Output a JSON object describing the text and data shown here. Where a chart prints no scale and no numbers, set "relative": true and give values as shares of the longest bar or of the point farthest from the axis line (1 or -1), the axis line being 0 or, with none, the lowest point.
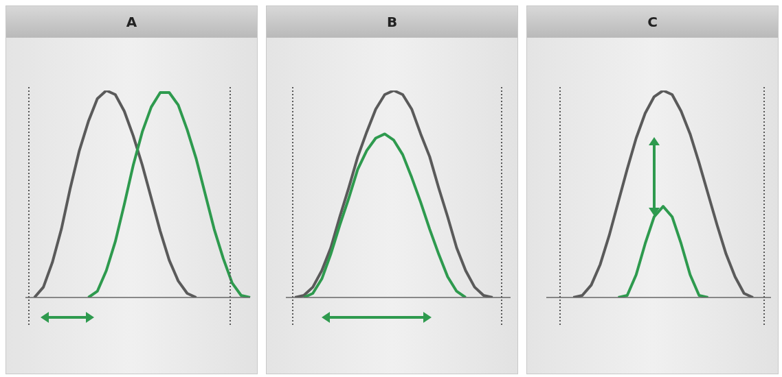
{
  "chart_data": [
    {
      "type": "line",
      "title": "A",
      "relative": true,
      "marker": "none",
      "line_style": "solid",
      "categories": [
        null,
        null,
        null,
        null,
        null,
        null,
        null,
        null,
        null,
        null,
        null,
        null,
        null,
        null,
        null,
        null,
        null,
        null,
        null,
        null,
        null,
        null,
        null,
        null,
        null,
        null
      ],
      "series": [
        {
          "color": "#5a5a5a",
          "values": [
            null,
            0,
            0.05,
            0.17,
            0.33,
            0.53,
            0.71,
            0.85,
            0.96,
            1,
            0.98,
            0.9,
            0.78,
            0.64,
            0.48,
            0.32,
            0.18,
            0.08,
            0.02,
            0,
            null,
            null,
            null,
            null,
            null,
            null
          ]
        },
        {
          "color": "#2e9a4e",
          "values": [
            null,
            null,
            null,
            null,
            null,
            null,
            null,
            0,
            0.03,
            0.13,
            0.27,
            0.45,
            0.64,
            0.8,
            0.92,
            0.99,
            0.99,
            0.93,
            0.81,
            0.67,
            0.5,
            0.33,
            0.19,
            0.07,
            0.01,
            0
          ]
        }
      ]
    },
    {
      "type": "line",
      "title": "B",
      "relative": true,
      "marker": "none",
      "line_style": "solid",
      "categories": [
        null,
        null,
        null,
        null,
        null,
        null,
        null,
        null,
        null,
        null,
        null,
        null,
        null,
        null,
        null,
        null,
        null,
        null,
        null,
        null,
        null,
        null,
        null,
        null,
        null,
        null
      ],
      "series": [
        {
          "color": "#5a5a5a",
          "values": [
            null,
            0,
            0.01,
            0.05,
            0.13,
            0.24,
            0.39,
            0.53,
            0.68,
            0.8,
            0.91,
            0.98,
            1,
            0.98,
            0.91,
            0.79,
            0.68,
            0.53,
            0.39,
            0.24,
            0.13,
            0.05,
            0.01,
            0,
            null,
            null
          ]
        },
        {
          "color": "#2e9a4e",
          "values": [
            null,
            null,
            0,
            0.02,
            0.09,
            0.21,
            0.35,
            0.48,
            0.62,
            0.71,
            0.77,
            0.79,
            0.76,
            0.69,
            0.58,
            0.46,
            0.33,
            0.21,
            0.1,
            0.03,
            0,
            null,
            null,
            null,
            null,
            null
          ]
        }
      ]
    },
    {
      "type": "line",
      "title": "C",
      "relative": true,
      "marker": "none",
      "line_style": "solid",
      "categories": [
        null,
        null,
        null,
        null,
        null,
        null,
        null,
        null,
        null,
        null,
        null,
        null,
        null,
        null,
        null,
        null,
        null,
        null,
        null,
        null,
        null,
        null,
        null,
        null,
        null,
        null
      ],
      "series": [
        {
          "color": "#5a5a5a",
          "values": [
            null,
            null,
            null,
            0,
            0.01,
            0.06,
            0.16,
            0.3,
            0.46,
            0.62,
            0.77,
            0.89,
            0.97,
            1,
            0.98,
            0.9,
            0.79,
            0.65,
            0.5,
            0.35,
            0.21,
            0.1,
            0.02,
            0,
            null,
            null
          ]
        },
        {
          "color": "#2e9a4e",
          "values": [
            null,
            null,
            null,
            null,
            null,
            null,
            null,
            null,
            0,
            0.01,
            0.11,
            0.26,
            0.39,
            0.44,
            0.39,
            0.26,
            0.11,
            0.01,
            0,
            null,
            null,
            null,
            null,
            null,
            null,
            null
          ]
        }
      ]
    }
  ]
}
